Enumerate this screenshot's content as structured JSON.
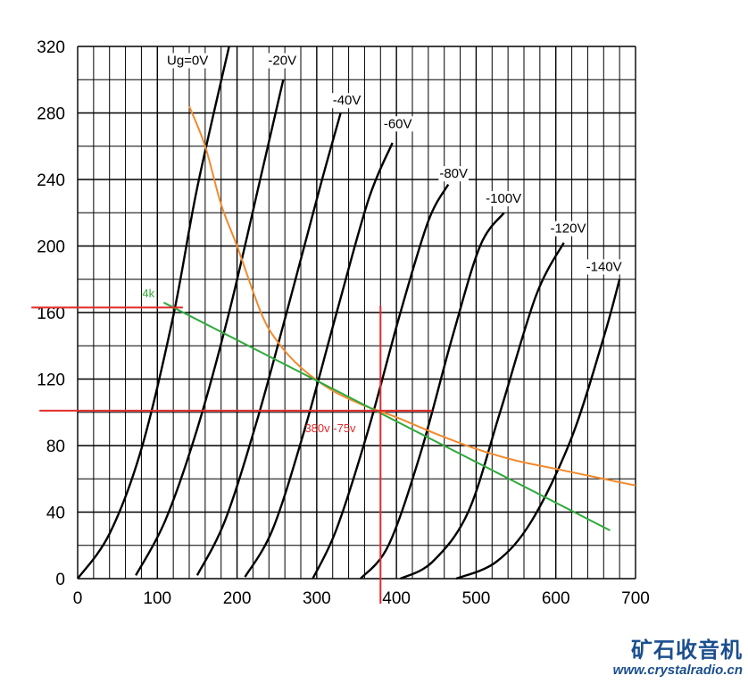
{
  "chart_data": {
    "type": "line",
    "title": "",
    "xlabel": "",
    "ylabel": "",
    "xlim": [
      0,
      700
    ],
    "ylim": [
      0,
      320
    ],
    "x_ticks": [
      0,
      100,
      200,
      300,
      400,
      500,
      600,
      700
    ],
    "y_ticks": [
      0,
      40,
      80,
      120,
      160,
      200,
      240,
      280,
      320
    ],
    "grid": true,
    "grid_x_step": 20,
    "grid_y_step": 20,
    "grid_color": "#000000",
    "plate_curve_color": "#000000",
    "series": [
      {
        "name": "Ug=0V",
        "points": [
          [
            0,
            0
          ],
          [
            40,
            27
          ],
          [
            80,
            78
          ],
          [
            120,
            158
          ],
          [
            150,
            235
          ],
          [
            190,
            320
          ]
        ]
      },
      {
        "name": "-20V",
        "points": [
          [
            73,
            2
          ],
          [
            110,
            35
          ],
          [
            150,
            90
          ],
          [
            190,
            160
          ],
          [
            230,
            242
          ],
          [
            258,
            300
          ]
        ]
      },
      {
        "name": "-40V",
        "points": [
          [
            150,
            2
          ],
          [
            185,
            35
          ],
          [
            225,
            95
          ],
          [
            265,
            165
          ],
          [
            305,
            237
          ],
          [
            330,
            280
          ]
        ]
      },
      {
        "name": "-60V",
        "points": [
          [
            210,
            1
          ],
          [
            245,
            30
          ],
          [
            285,
            90
          ],
          [
            325,
            160
          ],
          [
            365,
            228
          ],
          [
            395,
            262
          ]
        ]
      },
      {
        "name": "-80V",
        "points": [
          [
            295,
            0
          ],
          [
            325,
            30
          ],
          [
            365,
            90
          ],
          [
            405,
            160
          ],
          [
            440,
            215
          ],
          [
            465,
            237
          ]
        ]
      },
      {
        "name": "-100V",
        "points": [
          [
            355,
            0
          ],
          [
            390,
            20
          ],
          [
            430,
            75
          ],
          [
            470,
            145
          ],
          [
            505,
            200
          ],
          [
            535,
            220
          ]
        ]
      },
      {
        "name": "-120V",
        "points": [
          [
            405,
            0
          ],
          [
            445,
            10
          ],
          [
            490,
            40
          ],
          [
            530,
            100
          ],
          [
            575,
            170
          ],
          [
            610,
            202
          ]
        ]
      },
      {
        "name": "-140V",
        "points": [
          [
            475,
            0
          ],
          [
            525,
            10
          ],
          [
            570,
            35
          ],
          [
            620,
            85
          ],
          [
            660,
            145
          ],
          [
            680,
            180
          ]
        ]
      }
    ],
    "overlays": [
      {
        "kind": "line",
        "label": "",
        "color": "#f28a2c",
        "points": [
          [
            140,
            284
          ],
          [
            160,
            260
          ],
          [
            180,
            225
          ],
          [
            200,
            200
          ],
          [
            230,
            160
          ],
          [
            250,
            143
          ],
          [
            280,
            127
          ],
          [
            320,
            113
          ],
          [
            360,
            104
          ],
          [
            400,
            97
          ],
          [
            450,
            87
          ],
          [
            500,
            78
          ],
          [
            550,
            71
          ],
          [
            600,
            66
          ],
          [
            650,
            61
          ],
          [
            700,
            56
          ]
        ]
      },
      {
        "kind": "line",
        "label": "4k",
        "color": "#2eaa3c",
        "points": [
          [
            108,
            166
          ],
          [
            668,
            29
          ]
        ]
      },
      {
        "kind": "line",
        "label": "",
        "color": "#e22b2b",
        "points": [
          [
            -58,
            163
          ],
          [
            132,
            163
          ]
        ]
      },
      {
        "kind": "line",
        "label": "",
        "color": "#e22b2b",
        "points": [
          [
            -48,
            101
          ],
          [
            445,
            101
          ]
        ]
      },
      {
        "kind": "line",
        "label": "",
        "color": "#e22b2b",
        "points": [
          [
            380,
            164
          ],
          [
            380,
            -15
          ]
        ]
      }
    ],
    "annotations": [
      {
        "text": "380v -75v",
        "x": 285,
        "y": 88,
        "color": "#e22b2b"
      }
    ],
    "curve_label_anchors": [
      {
        "text": "Ug=0V",
        "x": 112,
        "y": 309
      },
      {
        "text": "-20V",
        "x": 239,
        "y": 309
      },
      {
        "text": "-40V",
        "x": 320,
        "y": 285
      },
      {
        "text": "-60V",
        "x": 384,
        "y": 271
      },
      {
        "text": "-80V",
        "x": 454,
        "y": 241
      },
      {
        "text": "-100V",
        "x": 512,
        "y": 226
      },
      {
        "text": "-120V",
        "x": 593,
        "y": 208
      },
      {
        "text": "-140V",
        "x": 638,
        "y": 185
      }
    ]
  },
  "watermark": {
    "text_cn": "矿石收音机",
    "url": "www.crystalradio.cn",
    "color": "#1b4f8f"
  }
}
